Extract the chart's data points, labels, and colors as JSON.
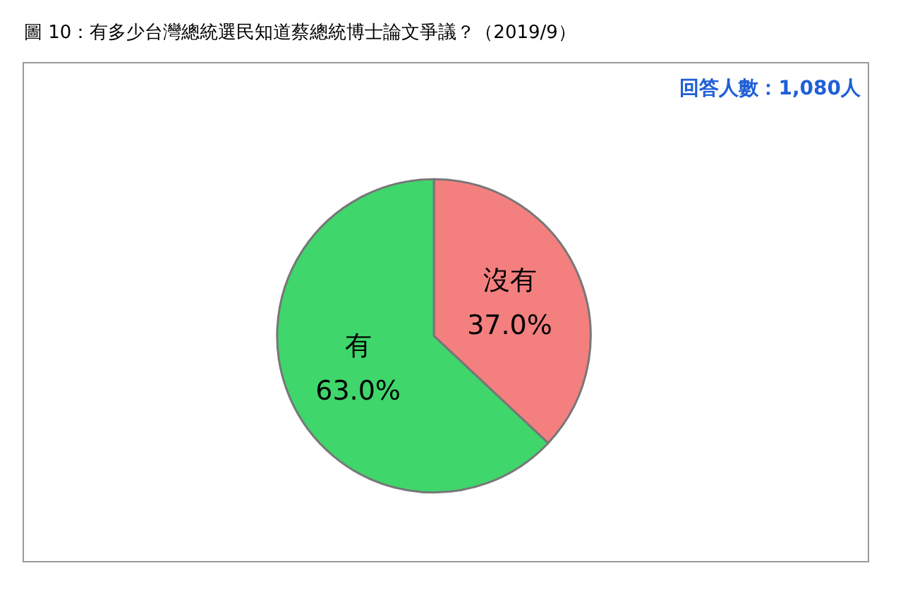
{
  "chart_data": {
    "type": "pie",
    "title": "圖 10：有多少台灣總統選民知道蔡總統博士論文爭議？（2019/9）",
    "categories": [
      "沒有",
      "有"
    ],
    "values": [
      37.0,
      63.0
    ],
    "value_labels": [
      "37.0%",
      "63.0%"
    ],
    "colors": [
      "#f47f7f",
      "#3fd66b"
    ],
    "annotations": [
      "回答人數：1,080人"
    ],
    "legend": false
  }
}
